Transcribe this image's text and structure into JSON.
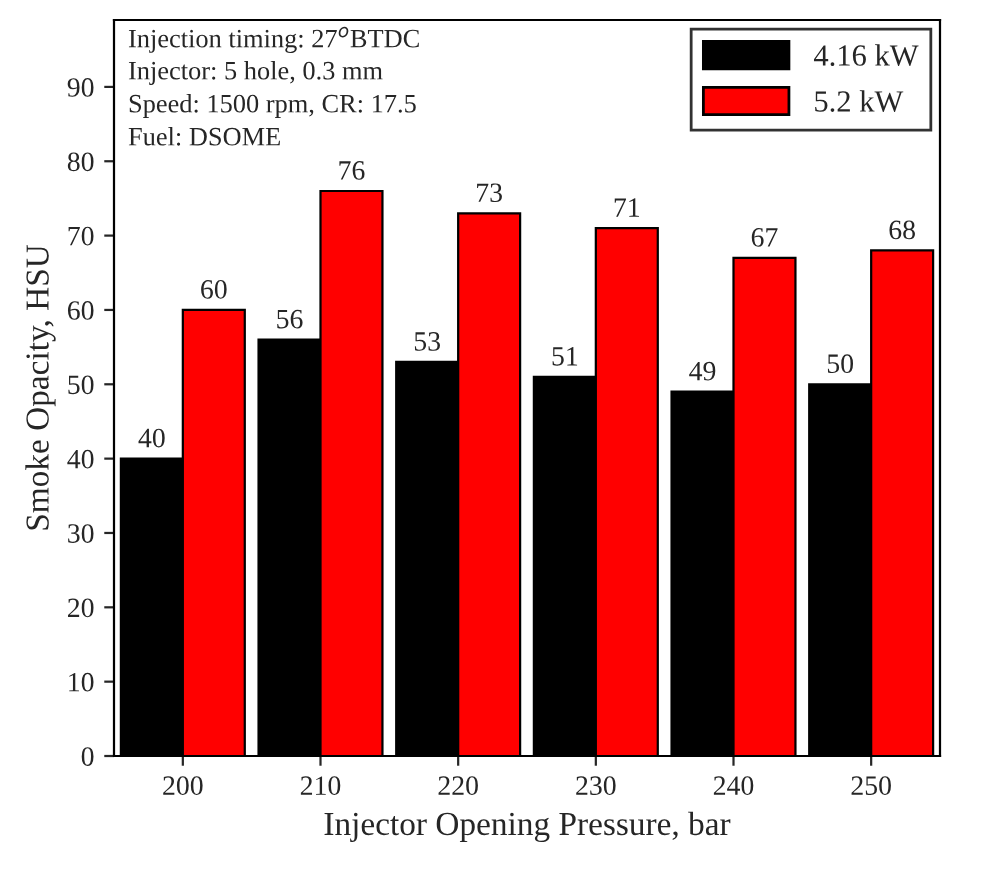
{
  "chart_data": {
    "type": "bar",
    "xlabel": "Injector Opening Pressure, bar",
    "ylabel": "Smoke Opacity, HSU",
    "categories": [
      "200",
      "210",
      "220",
      "230",
      "240",
      "250"
    ],
    "series": [
      {
        "name": "4.16 kW",
        "color": "#000000",
        "values": [
          40,
          56,
          53,
          51,
          49,
          50
        ]
      },
      {
        "name": "5.2 kW",
        "color": "#ff0000",
        "values": [
          60,
          76,
          73,
          71,
          67,
          68
        ]
      }
    ],
    "ylim": [
      0,
      99
    ],
    "yticks": [
      0,
      10,
      20,
      30,
      40,
      50,
      60,
      70,
      80,
      90
    ],
    "data_labels": true,
    "legend": "top right",
    "grid": false,
    "annotations": [
      "Injection timing: 27$^{o}$BTDC",
      "Injector: 5 hole, 0.3 mm",
      "Speed: 1500 rpm, CR: 17.5",
      "Fuel: DSOME"
    ]
  }
}
